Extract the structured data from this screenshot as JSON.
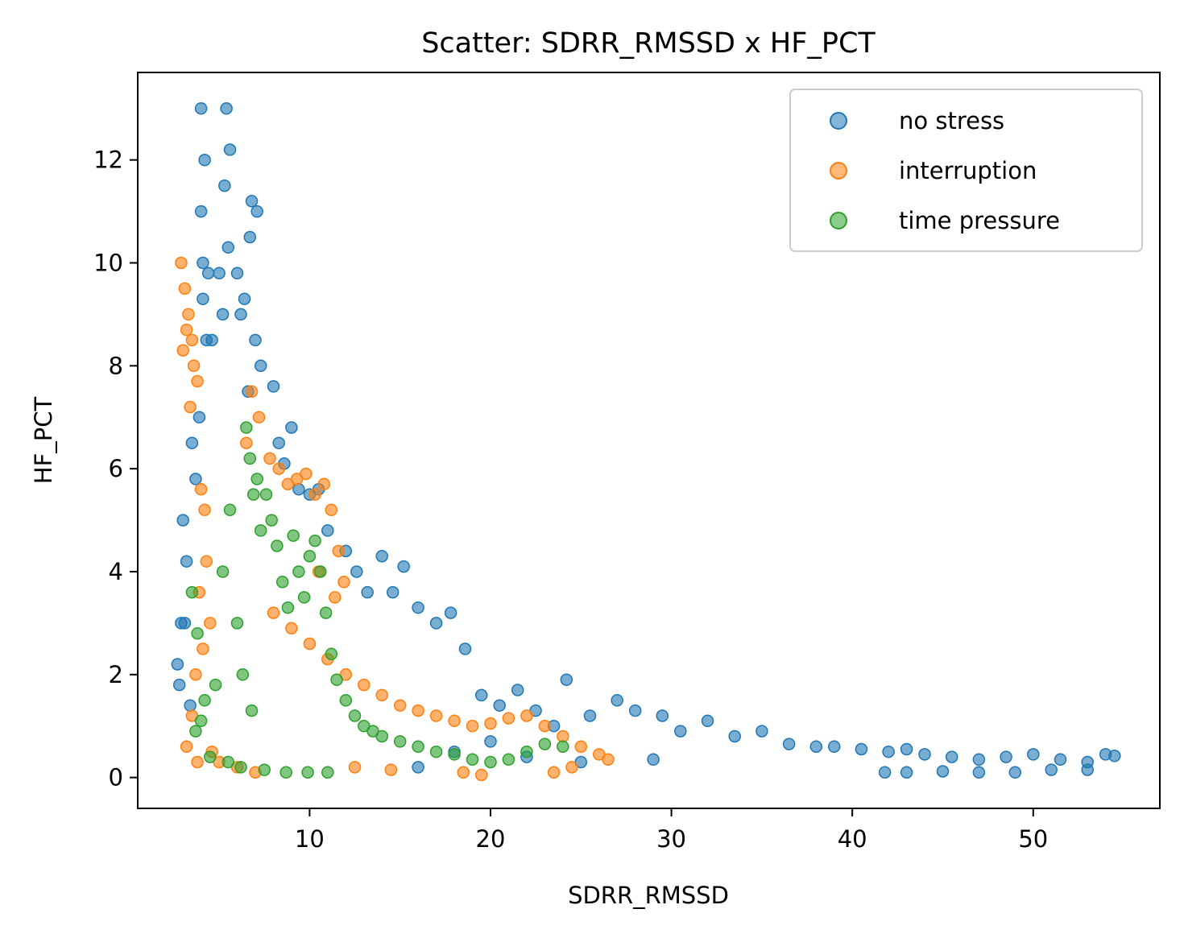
{
  "chart_data": {
    "type": "scatter",
    "title": "Scatter: SDRR_RMSSD x HF_PCT",
    "xlabel": "SDRR_RMSSD",
    "ylabel": "HF_PCT",
    "xlim": [
      0.5,
      57
    ],
    "ylim": [
      -0.6,
      13.7
    ],
    "xticks": [
      10,
      20,
      30,
      40,
      50
    ],
    "yticks": [
      0,
      2,
      4,
      6,
      8,
      10,
      12
    ],
    "xtick_labels": [
      "10",
      "20",
      "30",
      "40",
      "50"
    ],
    "ytick_labels": [
      "0",
      "2",
      "4",
      "6",
      "8",
      "10",
      "12"
    ],
    "legend_position": "top-right",
    "grid": false,
    "series": [
      {
        "name": "no stress",
        "color": "#1f77b4",
        "x": [
          4.0,
          4.2,
          4.0,
          4.1,
          5.4,
          5.6,
          5.3,
          5.5,
          4.4,
          4.1,
          4.3,
          3.0,
          3.2,
          2.9,
          3.5,
          3.9,
          3.7,
          4.6,
          5.0,
          5.2,
          6.0,
          6.2,
          6.8,
          7.1,
          6.7,
          6.4,
          7.0,
          6.6,
          7.3,
          8.0,
          8.3,
          8.6,
          9.0,
          9.4,
          10.0,
          10.5,
          11.0,
          12.0,
          12.6,
          13.2,
          14.0,
          14.6,
          15.2,
          16.0,
          17.0,
          17.8,
          18.6,
          19.5,
          20.5,
          21.5,
          22.5,
          23.5,
          24.2,
          25.5,
          27.0,
          28.0,
          29.5,
          30.5,
          32.0,
          33.5,
          35.0,
          36.5,
          38.0,
          39.0,
          40.5,
          42.0,
          43.0,
          44.0,
          45.5,
          47.0,
          48.5,
          50.0,
          51.5,
          53.0,
          54.0,
          54.5,
          41.8,
          43.0,
          45.0,
          47.0,
          49.0,
          51.0,
          53.0,
          2.8,
          3.1,
          2.7,
          3.4,
          18.0,
          16.0,
          22.0,
          20.0,
          25.0,
          29.0
        ],
        "y": [
          13.0,
          12.0,
          11.0,
          10.0,
          13.0,
          12.2,
          11.5,
          10.3,
          9.8,
          9.3,
          8.5,
          5.0,
          4.2,
          3.0,
          6.5,
          7.0,
          5.8,
          8.5,
          9.8,
          9.0,
          9.8,
          9.0,
          11.2,
          11.0,
          10.5,
          9.3,
          8.5,
          7.5,
          8.0,
          7.6,
          6.5,
          6.1,
          6.8,
          5.6,
          5.5,
          5.6,
          4.8,
          4.4,
          4.0,
          3.6,
          4.3,
          3.6,
          4.1,
          3.3,
          3.0,
          3.2,
          2.5,
          1.6,
          1.4,
          1.7,
          1.3,
          1.0,
          1.9,
          1.2,
          1.5,
          1.3,
          1.2,
          0.9,
          1.1,
          0.8,
          0.9,
          0.65,
          0.6,
          0.6,
          0.55,
          0.5,
          0.55,
          0.45,
          0.4,
          0.35,
          0.4,
          0.45,
          0.35,
          0.3,
          0.45,
          0.42,
          0.1,
          0.1,
          0.12,
          0.1,
          0.1,
          0.15,
          0.15,
          1.8,
          3.0,
          2.2,
          1.4,
          0.5,
          0.2,
          0.4,
          0.7,
          0.3,
          0.35
        ]
      },
      {
        "name": "interruption",
        "color": "#ff7f0e",
        "x": [
          2.9,
          3.1,
          3.3,
          3.5,
          3.0,
          3.2,
          3.6,
          3.8,
          3.4,
          4.0,
          4.2,
          4.3,
          3.9,
          4.5,
          4.1,
          3.7,
          3.5,
          3.2,
          3.8,
          6.5,
          6.8,
          7.2,
          7.8,
          8.3,
          8.8,
          9.3,
          9.8,
          10.3,
          10.8,
          11.2,
          11.6,
          11.9,
          8.0,
          9.0,
          10.0,
          11.0,
          12.0,
          13.0,
          14.0,
          15.0,
          16.0,
          17.0,
          18.0,
          19.0,
          20.0,
          21.0,
          22.0,
          23.0,
          24.0,
          25.0,
          26.0,
          26.5,
          24.5,
          23.5,
          19.5,
          18.5,
          14.5,
          12.5,
          4.6,
          5.0,
          6.0,
          7.0,
          10.5,
          11.4
        ],
        "y": [
          10.0,
          9.5,
          9.0,
          8.5,
          8.3,
          8.7,
          8.0,
          7.7,
          7.2,
          5.6,
          5.2,
          4.2,
          3.6,
          3.0,
          2.5,
          2.0,
          1.2,
          0.6,
          0.3,
          6.5,
          7.5,
          7.0,
          6.2,
          6.0,
          5.7,
          5.8,
          5.9,
          5.5,
          5.7,
          5.2,
          4.4,
          3.8,
          3.2,
          2.9,
          2.6,
          2.3,
          2.0,
          1.8,
          1.6,
          1.4,
          1.3,
          1.2,
          1.1,
          1.0,
          1.05,
          1.15,
          1.2,
          1.0,
          0.8,
          0.6,
          0.45,
          0.35,
          0.2,
          0.1,
          0.05,
          0.1,
          0.15,
          0.2,
          0.5,
          0.3,
          0.2,
          0.1,
          4.0,
          3.5
        ]
      },
      {
        "name": "time pressure",
        "color": "#2ca02c",
        "x": [
          3.5,
          3.8,
          4.2,
          4.8,
          5.2,
          5.6,
          6.0,
          6.3,
          6.5,
          6.7,
          6.9,
          7.1,
          7.3,
          7.6,
          7.9,
          8.2,
          8.5,
          8.8,
          9.1,
          9.4,
          9.7,
          10.0,
          10.3,
          10.6,
          10.9,
          11.2,
          11.5,
          12.0,
          12.5,
          13.0,
          13.5,
          14.0,
          15.0,
          16.0,
          17.0,
          18.0,
          19.0,
          20.0,
          21.0,
          22.0,
          23.0,
          24.0,
          3.7,
          4.5,
          5.5,
          6.2,
          7.5,
          8.7,
          9.9,
          11.0,
          4.0,
          6.8
        ],
        "y": [
          3.6,
          2.8,
          1.5,
          1.8,
          4.0,
          5.2,
          3.0,
          2.0,
          6.8,
          6.2,
          5.5,
          5.8,
          4.8,
          5.5,
          5.0,
          4.5,
          3.8,
          3.3,
          4.7,
          4.0,
          3.5,
          4.3,
          4.6,
          4.0,
          3.2,
          2.4,
          1.9,
          1.5,
          1.2,
          1.0,
          0.9,
          0.8,
          0.7,
          0.6,
          0.5,
          0.45,
          0.35,
          0.3,
          0.35,
          0.5,
          0.65,
          0.6,
          0.9,
          0.4,
          0.3,
          0.2,
          0.15,
          0.1,
          0.1,
          0.1,
          1.1,
          1.3
        ]
      }
    ]
  }
}
